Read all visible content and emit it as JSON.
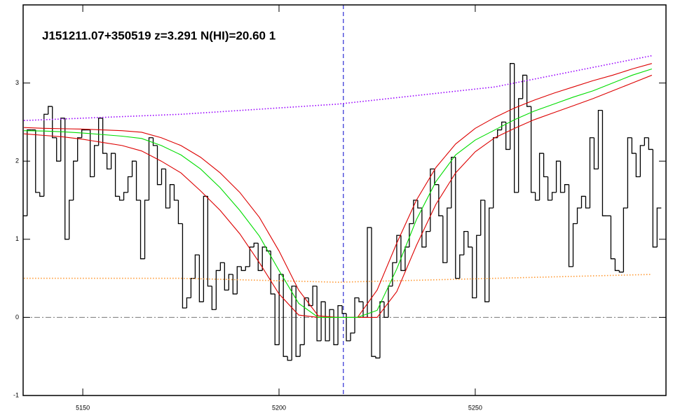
{
  "chart_data": {
    "type": "line",
    "title": "J151211.07+350519 z=3.291 N(HI)=20.60 1",
    "xlim": [
      5134.8,
      5298.6
    ],
    "ylim": [
      -1,
      4
    ],
    "xticks": [
      5150,
      5200,
      5250
    ],
    "yticks": [
      -1,
      0,
      1,
      2,
      3
    ],
    "vlines": [
      {
        "value": 5216.4,
        "color": "#0000cc",
        "dash": "dashed"
      }
    ],
    "hlines": [
      {
        "value": 0,
        "color": "#777777",
        "dash": "dashdot"
      }
    ],
    "series": [
      {
        "style": "step",
        "color": "#000000",
        "x": [
          5135.3,
          5136.37,
          5137.44,
          5138.51,
          5139.58,
          5140.65,
          5141.72,
          5142.79,
          5143.86,
          5144.93,
          5146.0,
          5147.07,
          5148.14,
          5149.21,
          5150.28,
          5151.35,
          5152.42,
          5153.49,
          5154.56,
          5155.63,
          5156.7,
          5157.77,
          5158.84,
          5159.91,
          5160.98,
          5162.05,
          5163.12,
          5164.19,
          5165.26,
          5166.33,
          5167.4,
          5168.47,
          5169.54,
          5170.61,
          5171.68,
          5172.75,
          5173.82,
          5174.89,
          5175.96,
          5177.03,
          5178.1,
          5179.17,
          5180.24,
          5181.31,
          5182.38,
          5183.45,
          5184.52,
          5185.59,
          5186.66,
          5187.73,
          5188.8,
          5189.87,
          5190.94,
          5192.01,
          5193.08,
          5194.15,
          5195.22,
          5196.29,
          5197.36,
          5198.43,
          5199.5,
          5200.57,
          5201.64,
          5202.71,
          5203.78,
          5204.85,
          5205.92,
          5206.99,
          5208.06,
          5209.13,
          5210.2,
          5211.27,
          5212.34,
          5213.41,
          5214.48,
          5215.55,
          5216.62,
          5217.69,
          5218.76,
          5219.83,
          5220.9,
          5221.97,
          5223.04,
          5224.11,
          5225.18,
          5226.25,
          5227.32,
          5228.39,
          5229.46,
          5230.53,
          5231.6,
          5232.67,
          5233.74,
          5234.81,
          5235.88,
          5236.95,
          5238.02,
          5239.09,
          5240.16,
          5241.23,
          5242.3,
          5243.37,
          5244.44,
          5245.51,
          5246.58,
          5247.65,
          5248.72,
          5249.79,
          5250.86,
          5251.93,
          5253.0,
          5254.07,
          5255.14,
          5256.21,
          5257.28,
          5258.35,
          5259.42,
          5260.49,
          5261.56,
          5262.63,
          5263.7,
          5264.77,
          5265.84,
          5266.91,
          5267.98,
          5269.05,
          5270.12,
          5271.19,
          5272.26,
          5273.33,
          5274.4,
          5275.47,
          5276.54,
          5277.61,
          5278.68,
          5279.75,
          5280.82,
          5281.89,
          5282.96,
          5284.03,
          5285.1,
          5286.17,
          5287.24,
          5288.31,
          5289.38,
          5290.45,
          5291.52,
          5292.59,
          5293.66,
          5294.73,
          5295.8,
          5296.87
        ],
        "values": [
          1.3,
          2.4,
          2.4,
          1.6,
          1.55,
          2.6,
          2.7,
          2.3,
          2.0,
          2.55,
          1.0,
          1.5,
          2.0,
          2.3,
          2.4,
          2.4,
          1.8,
          2.2,
          2.55,
          2.1,
          1.9,
          2.1,
          1.55,
          1.5,
          1.6,
          1.8,
          2.0,
          1.5,
          0.75,
          1.5,
          2.3,
          2.2,
          1.7,
          1.9,
          1.4,
          1.7,
          1.5,
          1.2,
          0.12,
          0.25,
          0.5,
          0.8,
          0.2,
          1.55,
          0.4,
          0.1,
          0.6,
          0.7,
          0.35,
          0.55,
          0.3,
          0.65,
          0.6,
          0.65,
          0.9,
          0.95,
          0.6,
          0.9,
          0.85,
          0.3,
          -0.35,
          0.55,
          -0.5,
          -0.55,
          0.4,
          -0.5,
          -0.35,
          0.25,
          0.15,
          0.4,
          -0.3,
          0.2,
          -0.3,
          0.1,
          -0.35,
          0.15,
          0.05,
          -0.3,
          -0.2,
          0.25,
          0.2,
          0.0,
          1.15,
          -0.5,
          -0.52,
          0.2,
          0.0,
          0.4,
          0.7,
          1.05,
          0.6,
          0.9,
          1.2,
          1.5,
          1.4,
          0.9,
          1.1,
          1.9,
          1.7,
          1.3,
          0.7,
          1.4,
          2.05,
          0.5,
          0.8,
          1.1,
          0.9,
          0.25,
          1.05,
          1.5,
          0.2,
          1.4,
          2.3,
          2.4,
          2.5,
          2.15,
          3.25,
          1.6,
          2.8,
          3.1,
          2.7,
          1.6,
          1.5,
          2.1,
          1.8,
          1.5,
          1.6,
          2.0,
          1.6,
          1.7,
          0.65,
          1.2,
          1.4,
          1.55,
          1.4,
          2.3,
          1.9,
          2.65,
          1.3,
          1.3,
          0.75,
          0.6,
          0.58,
          1.4,
          2.3,
          2.1,
          1.8,
          2.2,
          2.3,
          2.15,
          0.9,
          1.4
        ]
      },
      {
        "style": "dotted",
        "color": "#9900ff",
        "x": [
          5135,
          5175,
          5215,
          5255,
          5295
        ],
        "values": [
          2.52,
          2.6,
          2.73,
          2.95,
          3.35
        ]
      },
      {
        "style": "dotted",
        "color": "#ff9933",
        "x": [
          5135,
          5175,
          5215,
          5255,
          5295
        ],
        "values": [
          0.5,
          0.5,
          0.45,
          0.5,
          0.55
        ]
      },
      {
        "style": "solid",
        "color": "#dd0000",
        "x": [
          5135,
          5140,
          5145,
          5150,
          5155,
          5160,
          5165,
          5170,
          5175,
          5180,
          5185,
          5190,
          5195,
          5200,
          5205,
          5210,
          5215,
          5220,
          5225,
          5230,
          5235,
          5240,
          5245,
          5250,
          5255,
          5260,
          5265,
          5270,
          5275,
          5280,
          5285,
          5290,
          5295
        ],
        "values": [
          2.43,
          2.42,
          2.415,
          2.41,
          2.4,
          2.39,
          2.37,
          2.3,
          2.2,
          2.05,
          1.85,
          1.6,
          1.28,
          0.85,
          0.35,
          0.02,
          0,
          0,
          0.35,
          0.95,
          1.5,
          1.92,
          2.22,
          2.42,
          2.56,
          2.68,
          2.78,
          2.87,
          2.95,
          3.03,
          3.1,
          3.18,
          3.25
        ]
      },
      {
        "style": "solid",
        "color": "#dd0000",
        "x": [
          5135,
          5140,
          5145,
          5150,
          5155,
          5160,
          5165,
          5170,
          5175,
          5180,
          5185,
          5190,
          5195,
          5200,
          5205,
          5210,
          5215,
          5220,
          5225,
          5230,
          5235,
          5240,
          5245,
          5250,
          5255,
          5260,
          5265,
          5270,
          5275,
          5280,
          5285,
          5290,
          5295
        ],
        "values": [
          2.35,
          2.33,
          2.31,
          2.28,
          2.24,
          2.2,
          2.13,
          2.0,
          1.85,
          1.62,
          1.37,
          1.07,
          0.7,
          0.3,
          0.03,
          0,
          0,
          0,
          0,
          0.33,
          0.92,
          1.45,
          1.85,
          2.12,
          2.3,
          2.42,
          2.53,
          2.62,
          2.71,
          2.8,
          2.9,
          3.0,
          3.1
        ]
      },
      {
        "style": "solid",
        "color": "#00dd00",
        "x": [
          5135,
          5140,
          5145,
          5150,
          5155,
          5160,
          5165,
          5170,
          5175,
          5180,
          5185,
          5190,
          5195,
          5200,
          5205,
          5210,
          5215,
          5220,
          5225,
          5230,
          5235,
          5240,
          5245,
          5250,
          5255,
          5260,
          5265,
          5270,
          5275,
          5280,
          5285,
          5290,
          5295
        ],
        "values": [
          2.39,
          2.385,
          2.375,
          2.36,
          2.34,
          2.32,
          2.29,
          2.2,
          2.08,
          1.9,
          1.66,
          1.37,
          1.04,
          0.6,
          0.18,
          0,
          0,
          0,
          0.09,
          0.62,
          1.25,
          1.74,
          2.08,
          2.27,
          2.4,
          2.53,
          2.64,
          2.73,
          2.82,
          2.9,
          3.0,
          3.1,
          3.18
        ]
      }
    ]
  }
}
